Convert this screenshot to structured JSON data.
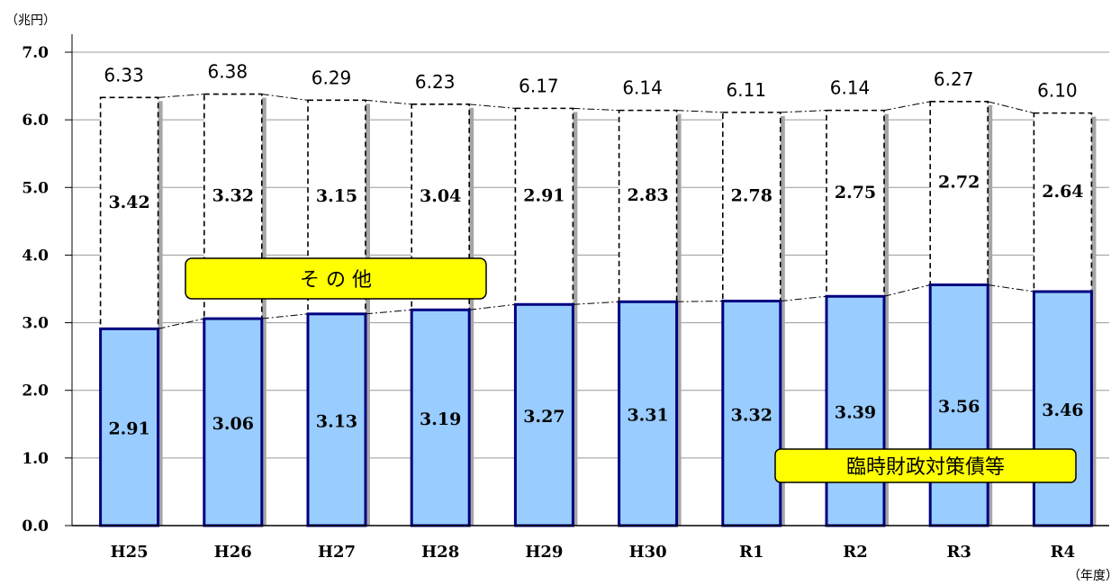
{
  "chart_data": {
    "type": "bar",
    "stacked": true,
    "y_unit": "（兆円）",
    "x_unit": "（年度）",
    "ylim": [
      0,
      7
    ],
    "yticks": [
      "0.0",
      "1.0",
      "2.0",
      "3.0",
      "4.0",
      "5.0",
      "6.0",
      "7.0"
    ],
    "categories": [
      "H25",
      "H26",
      "H27",
      "H28",
      "H29",
      "H30",
      "R1",
      "R2",
      "R3",
      "R4"
    ],
    "series": [
      {
        "name": "臨時財政対策債等",
        "values": [
          2.91,
          3.06,
          3.13,
          3.19,
          3.27,
          3.31,
          3.32,
          3.39,
          3.56,
          3.46
        ],
        "labels": [
          "2.91",
          "3.06",
          "3.13",
          "3.19",
          "3.27",
          "3.31",
          "3.32",
          "3.39",
          "3.56",
          "3.46"
        ]
      },
      {
        "name": "そ の 他",
        "values": [
          3.42,
          3.32,
          3.15,
          3.04,
          2.91,
          2.83,
          2.78,
          2.75,
          2.72,
          2.64
        ],
        "labels": [
          "3.42",
          "3.32",
          "3.15",
          "3.04",
          "2.91",
          "2.83",
          "2.78",
          "2.75",
          "2.72",
          "2.64"
        ]
      }
    ],
    "totals": [
      6.33,
      6.38,
      6.29,
      6.23,
      6.17,
      6.14,
      6.11,
      6.14,
      6.27,
      6.1
    ],
    "total_labels": [
      "6.33",
      "6.38",
      "6.29",
      "6.23",
      "6.17",
      "6.14",
      "6.11",
      "6.14",
      "6.27",
      "6.10"
    ],
    "grid": true,
    "colors": {
      "bar_fill": "#99ccff",
      "bar_border": "#000080",
      "callout_fill": "#ffff00",
      "grid": "#999999"
    }
  }
}
